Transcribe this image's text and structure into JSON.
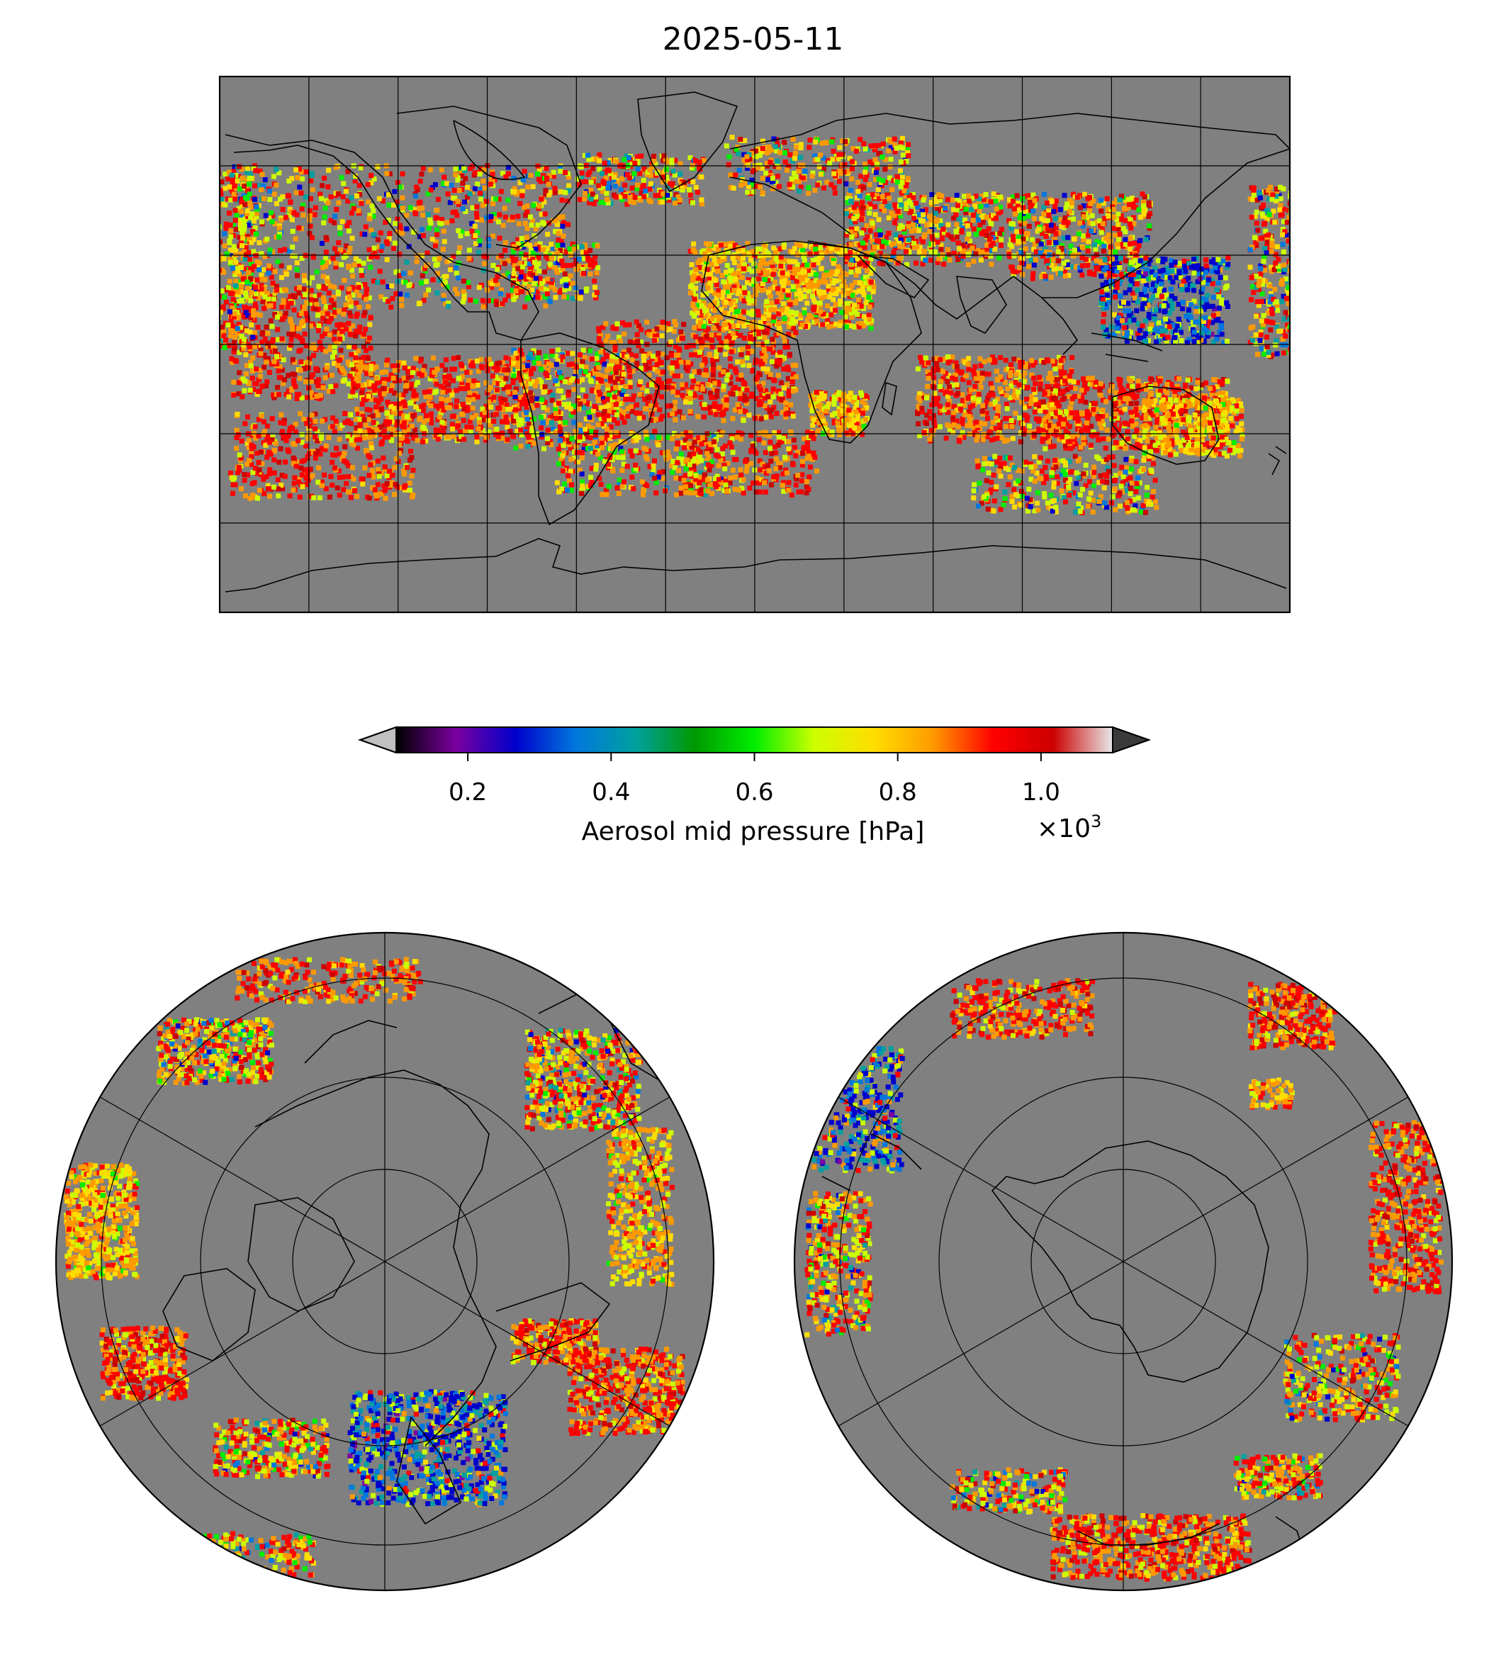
{
  "title": "2025-05-11",
  "colorbar": {
    "label": "Aerosol mid pressure [hPa]",
    "multiplier_base": "×10",
    "multiplier_exponent": "3",
    "ticks": [
      "0.2",
      "0.4",
      "0.6",
      "0.8",
      "1.0"
    ],
    "tick_values": [
      0.2,
      0.4,
      0.6,
      0.8,
      1.0
    ],
    "range": [
      0.1,
      1.1
    ],
    "extend": "both",
    "under_color": "#c0c0c0",
    "over_color": "#3a3a3a",
    "colormap_stops": [
      "#000000",
      "#7b00a0",
      "#0000cc",
      "#0077dd",
      "#00a0a0",
      "#009900",
      "#00ee00",
      "#ccff00",
      "#ffdd00",
      "#ff9900",
      "#ff0000",
      "#cc0000",
      "#e8e8e8"
    ]
  },
  "maps": {
    "global": {
      "projection": "plate-carree",
      "background": "#808080",
      "gridlines": true
    },
    "north_polar": {
      "projection": "north-polar-stereographic",
      "background": "#808080",
      "gridlines": true
    },
    "south_polar": {
      "projection": "south-polar-stereographic",
      "background": "#808080",
      "gridlines": true
    }
  }
}
